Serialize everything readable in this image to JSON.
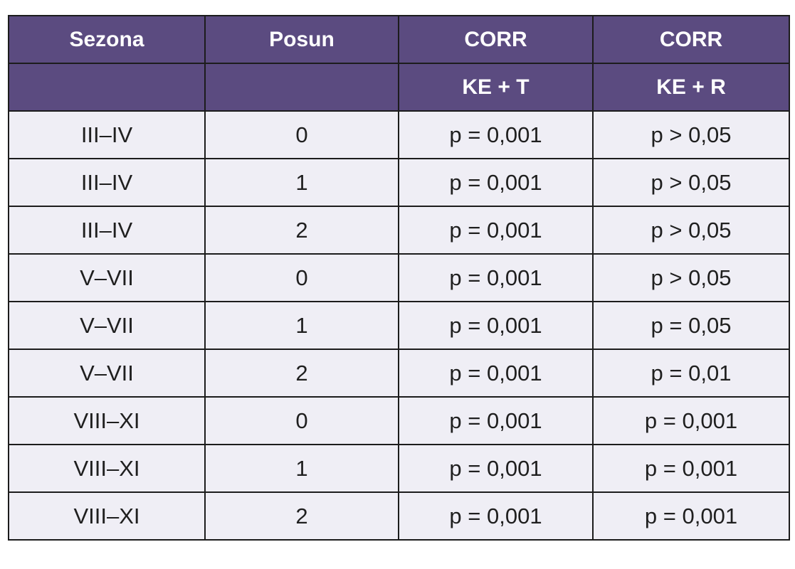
{
  "table": {
    "header_row_1": [
      "Sezona",
      "Posun",
      "CORR",
      "CORR"
    ],
    "header_row_2": [
      "",
      "",
      "KE + T",
      "KE + R"
    ],
    "rows": [
      [
        "III–IV",
        "0",
        "p = 0,001",
        "p > 0,05"
      ],
      [
        "III–IV",
        "1",
        "p = 0,001",
        "p > 0,05"
      ],
      [
        "III–IV",
        "2",
        "p = 0,001",
        "p > 0,05"
      ],
      [
        "V–VII",
        "0",
        "p = 0,001",
        "p > 0,05"
      ],
      [
        "V–VII",
        "1",
        "p = 0,001",
        "p = 0,05"
      ],
      [
        "V–VII",
        "2",
        "p = 0,001",
        "p = 0,01"
      ],
      [
        "VIII–XI",
        "0",
        "p = 0,001",
        "p = 0,001"
      ],
      [
        "VIII–XI",
        "1",
        "p = 0,001",
        "p = 0,001"
      ],
      [
        "VIII–XI",
        "2",
        "p = 0,001",
        "p = 0,001"
      ]
    ]
  },
  "colors": {
    "header_bg": "#5b4b80",
    "header_text": "#ffffff",
    "body_bg": "#efeef5",
    "border": "#1c1c1c"
  }
}
